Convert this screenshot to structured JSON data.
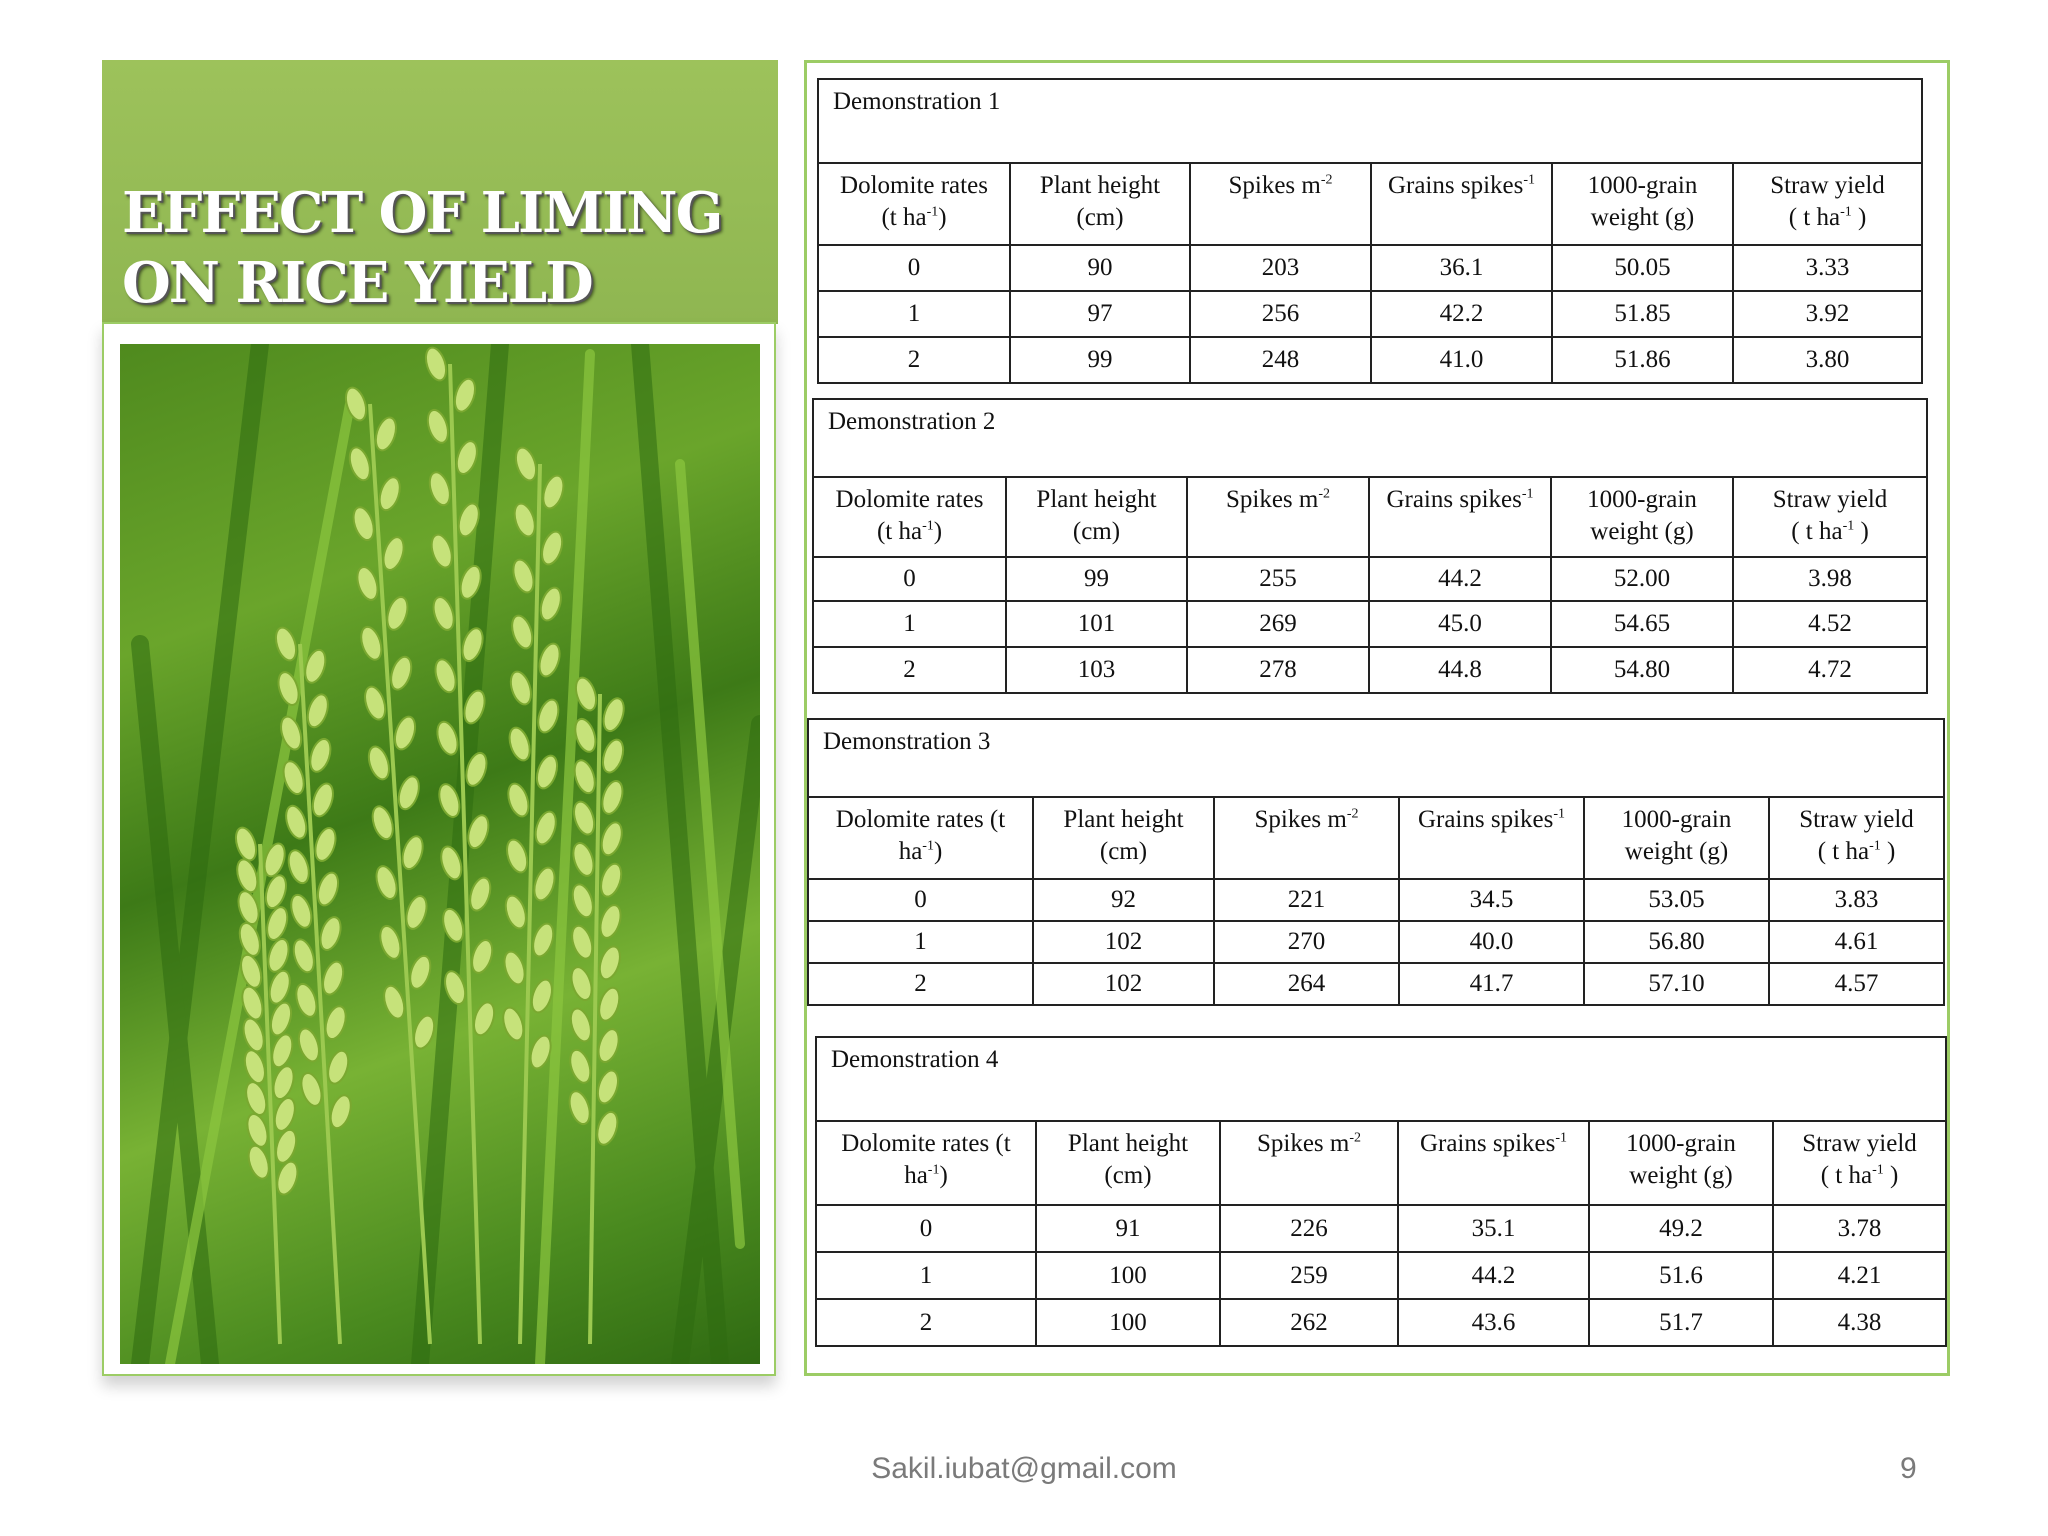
{
  "slide": {
    "title": "EFFECT OF LIMING\nON RICE  YIELD",
    "photo_description_icon": "rice-panicle-photo",
    "footer_email": "Sakil.iubat@gmail.com",
    "page_number": "9"
  },
  "colors": {
    "title_bg": "#9dc25b",
    "frame_border": "#9ccc65"
  },
  "demos": [
    {
      "caption": "Demonstration 1",
      "headers": [
        "Dolomite rates (t ha-1)",
        "Plant height (cm)",
        "Spikes m-2",
        "Grains spikes-1",
        "1000-grain weight (g)",
        "Straw yield ( t ha-1 )"
      ],
      "rows": [
        [
          "0",
          "90",
          "203",
          "36.1",
          "50.05",
          "3.33"
        ],
        [
          "1",
          "97",
          "256",
          "42.2",
          "51.85",
          "3.92"
        ],
        [
          "2",
          "99",
          "248",
          "41.0",
          "51.86",
          "3.80"
        ]
      ]
    },
    {
      "caption": "Demonstration 2",
      "headers": [
        "Dolomite rates (t ha-1)",
        "Plant height (cm)",
        "Spikes m-2",
        "Grains spikes-1",
        "1000-grain weight (g)",
        "Straw yield ( t ha-1 )"
      ],
      "rows": [
        [
          "0",
          "99",
          "255",
          "44.2",
          "52.00",
          "3.98"
        ],
        [
          "1",
          "101",
          "269",
          "45.0",
          "54.65",
          "4.52"
        ],
        [
          "2",
          "103",
          "278",
          "44.8",
          "54.80",
          "4.72"
        ]
      ]
    },
    {
      "caption": "Demonstration 3",
      "headers": [
        "Dolomite rates (t ha-1)",
        "Plant height (cm)",
        "Spikes m-2",
        "Grains spikes-1",
        "1000-grain weight (g)",
        "Straw yield ( t ha-1 )"
      ],
      "rows": [
        [
          "0",
          "92",
          "221",
          "34.5",
          "53.05",
          "3.83"
        ],
        [
          "1",
          "102",
          "270",
          "40.0",
          "56.80",
          "4.61"
        ],
        [
          "2",
          "102",
          "264",
          "41.7",
          "57.10",
          "4.57"
        ]
      ]
    },
    {
      "caption": "Demonstration 4",
      "headers": [
        "Dolomite rates (t ha-1)",
        "Plant height (cm)",
        "Spikes m-2",
        "Grains spikes-1",
        "1000-grain weight (g)",
        "Straw yield ( t ha-1 )"
      ],
      "rows": [
        [
          "0",
          "91",
          "226",
          "35.1",
          "49.2",
          "3.78"
        ],
        [
          "1",
          "100",
          "259",
          "44.2",
          "51.6",
          "4.21"
        ],
        [
          "2",
          "100",
          "262",
          "43.6",
          "51.7",
          "4.38"
        ]
      ]
    }
  ]
}
